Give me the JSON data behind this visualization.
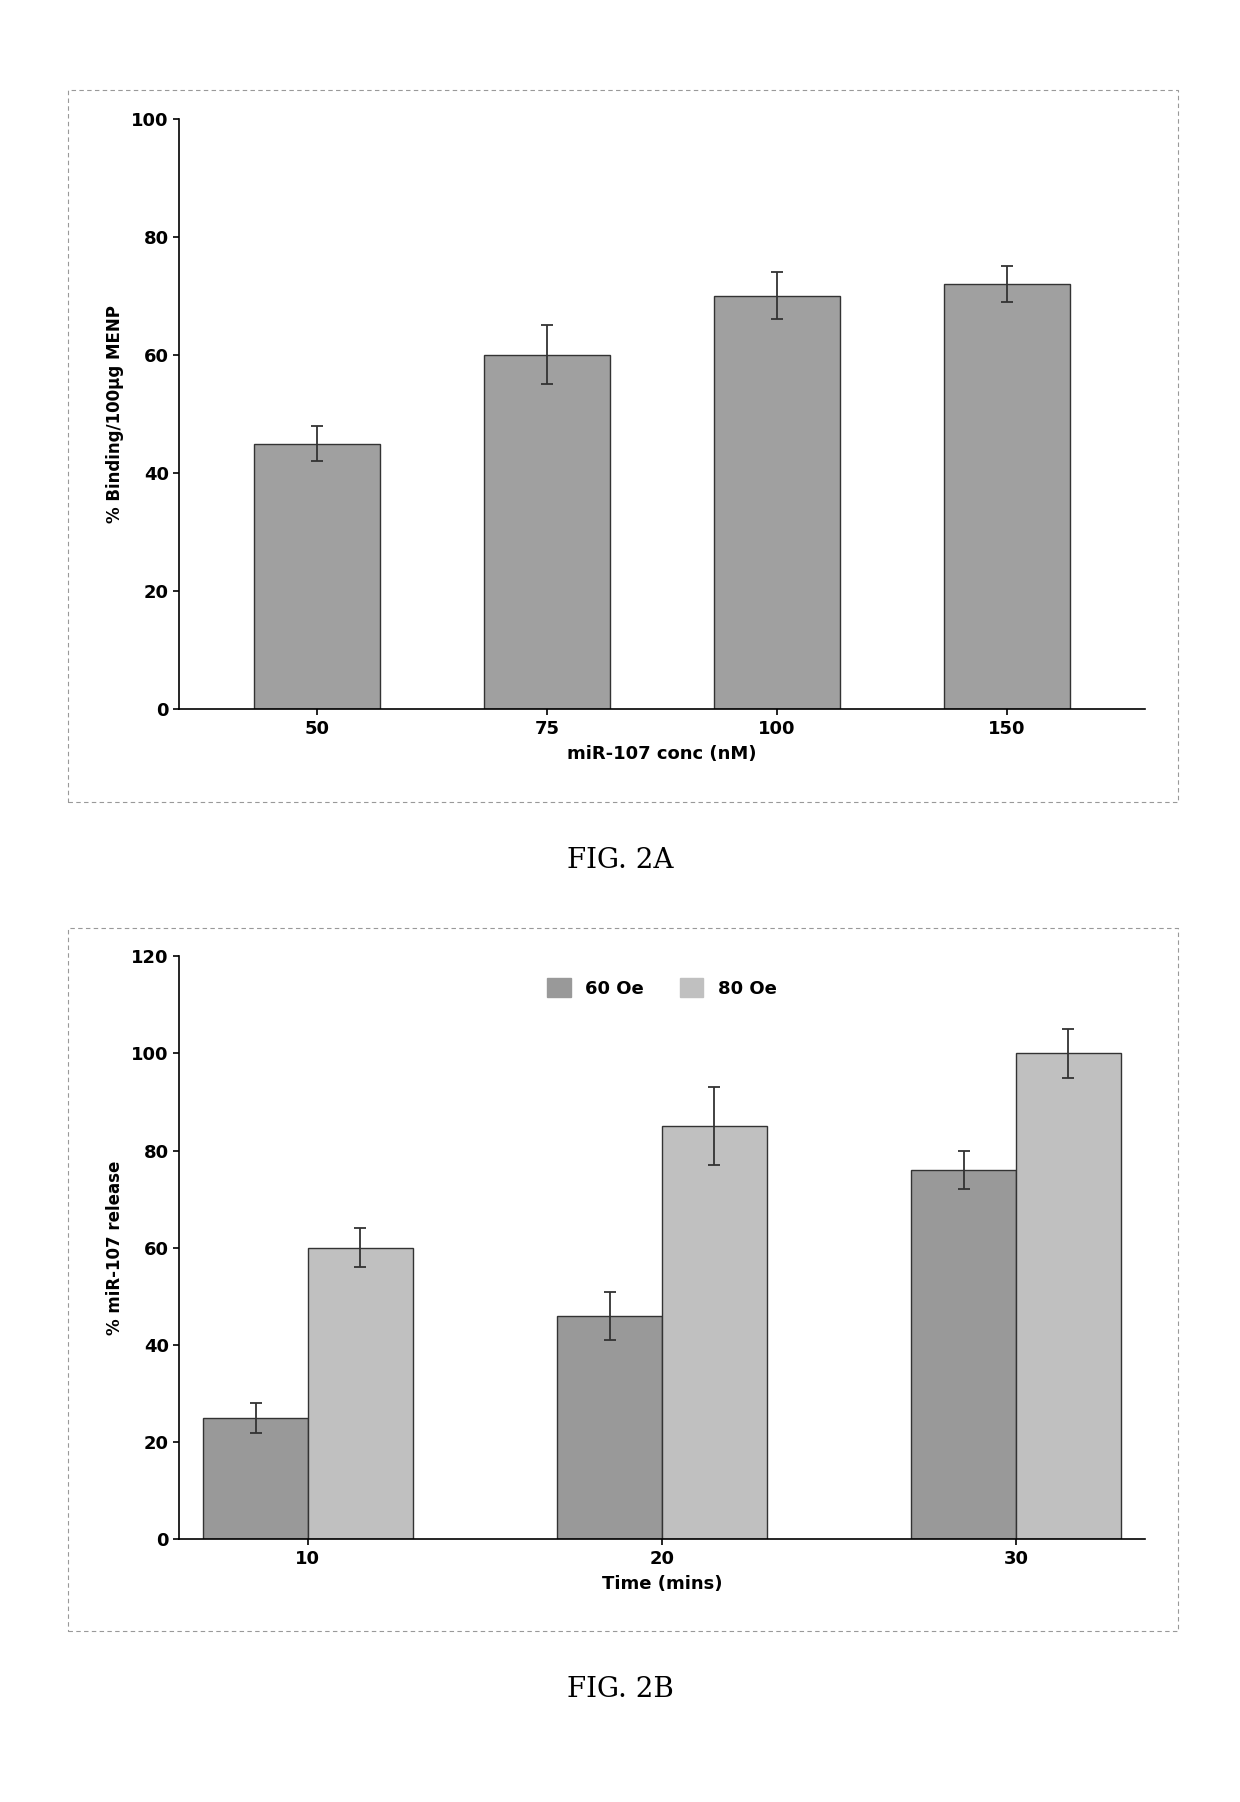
{
  "fig2a": {
    "categories": [
      "50",
      "75",
      "100",
      "150"
    ],
    "values": [
      45,
      60,
      70,
      72
    ],
    "errors": [
      3,
      5,
      4,
      3
    ],
    "xlabel": "miR-107 conc (nM)",
    "ylabel": "% Binding/100μg MENP",
    "ylim": [
      0,
      100
    ],
    "yticks": [
      0,
      20,
      40,
      60,
      80,
      100
    ],
    "bar_color": "#a0a0a0",
    "bar_edgecolor": "#333333",
    "caption": "FIG. 2A"
  },
  "fig2b": {
    "categories": [
      "10",
      "20",
      "30"
    ],
    "values_60oe": [
      25,
      46,
      76
    ],
    "values_80oe": [
      60,
      85,
      100
    ],
    "errors_60oe": [
      3,
      5,
      4
    ],
    "errors_80oe": [
      4,
      8,
      5
    ],
    "xlabel": "Time (mins)",
    "ylabel": "% miR-107 release",
    "ylim": [
      0,
      120
    ],
    "yticks": [
      0,
      20,
      40,
      60,
      80,
      100,
      120
    ],
    "bar_color_60oe": "#999999",
    "bar_color_80oe": "#c0c0c0",
    "legend_labels": [
      "60 Oe",
      "80 Oe"
    ],
    "caption": "FIG. 2B"
  },
  "background_color": "#ffffff",
  "panel_bg": "#ffffff",
  "border_color": "#999999"
}
